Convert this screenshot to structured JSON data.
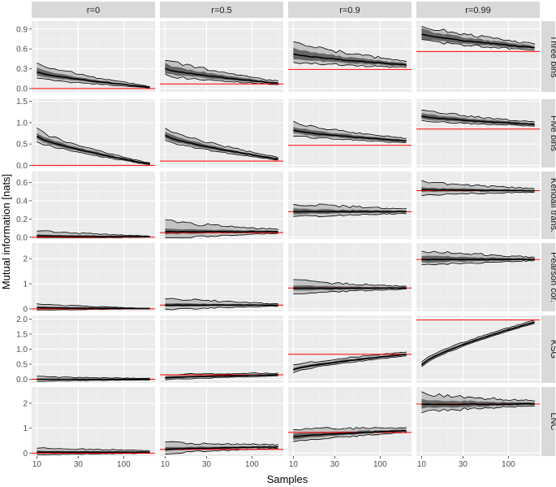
{
  "chart_data": {
    "type": "line",
    "layout": "facet_grid",
    "xlabel": "Samples",
    "ylabel": "Mutual information [nats]",
    "x_scale": "log",
    "x_range": [
      10,
      200
    ],
    "x_ticks": [
      10,
      30,
      100
    ],
    "column_facets": [
      "r=0",
      "r=0.5",
      "r=0.9",
      "r=0.99"
    ],
    "row_facets": [
      {
        "label": "Three bins",
        "ylim": [
          -0.05,
          1.02
        ],
        "yticks": [
          0.0,
          0.3,
          0.6,
          0.9
        ],
        "true_mi": [
          0.0,
          0.07,
          0.29,
          0.56
        ],
        "median_start": [
          0.25,
          0.3,
          0.52,
          0.82
        ],
        "median_end": [
          0.02,
          0.08,
          0.36,
          0.62
        ],
        "band50_start": [
          0.1,
          0.14,
          0.15,
          0.14
        ],
        "band50_end": [
          0.01,
          0.02,
          0.05,
          0.05
        ],
        "band90_start": [
          0.23,
          0.26,
          0.3,
          0.24
        ],
        "band90_end": [
          0.02,
          0.05,
          0.1,
          0.09
        ]
      },
      {
        "label": "Five bins",
        "ylim": [
          -0.05,
          1.55
        ],
        "yticks": [
          0.0,
          0.5,
          1.0,
          1.5
        ],
        "true_mi": [
          0.0,
          0.1,
          0.47,
          0.85
        ],
        "median_start": [
          0.68,
          0.7,
          0.82,
          1.15
        ],
        "median_end": [
          0.03,
          0.15,
          0.57,
          0.96
        ],
        "band50_start": [
          0.14,
          0.15,
          0.15,
          0.14
        ],
        "band50_end": [
          0.02,
          0.03,
          0.05,
          0.05
        ],
        "band90_start": [
          0.28,
          0.3,
          0.3,
          0.25
        ],
        "band90_end": [
          0.04,
          0.06,
          0.1,
          0.09
        ]
      },
      {
        "label": "Kendall trans.",
        "ylim": [
          -0.02,
          0.72
        ],
        "yticks": [
          0.0,
          0.2,
          0.4,
          0.6
        ],
        "true_mi": [
          0.0,
          0.05,
          0.28,
          0.51
        ],
        "median_start": [
          0.015,
          0.06,
          0.28,
          0.52
        ],
        "median_end": [
          0.005,
          0.06,
          0.28,
          0.51
        ],
        "band50_start": [
          0.03,
          0.06,
          0.06,
          0.05
        ],
        "band50_end": [
          0.005,
          0.02,
          0.025,
          0.015
        ],
        "band90_start": [
          0.1,
          0.2,
          0.15,
          0.15
        ],
        "band90_end": [
          0.01,
          0.04,
          0.05,
          0.04
        ]
      },
      {
        "label": "Pearson cor.",
        "ylim": [
          -0.1,
          2.62
        ],
        "yticks": [
          0,
          1,
          2
        ],
        "true_mi": [
          0.0,
          0.15,
          0.83,
          1.97
        ],
        "median_start": [
          0.05,
          0.15,
          0.82,
          1.97
        ],
        "median_end": [
          0.01,
          0.15,
          0.83,
          1.97
        ],
        "band50_start": [
          0.08,
          0.15,
          0.22,
          0.28
        ],
        "band50_end": [
          0.01,
          0.04,
          0.06,
          0.07
        ],
        "band90_start": [
          0.25,
          0.5,
          0.55,
          0.65
        ],
        "band90_end": [
          0.02,
          0.08,
          0.12,
          0.13
        ]
      },
      {
        "label": "KSG",
        "ylim": [
          -0.12,
          2.12
        ],
        "yticks": [
          0.0,
          0.5,
          1.0,
          1.5,
          2.0
        ],
        "true_mi": [
          0.0,
          0.15,
          0.83,
          1.97
        ],
        "median_start": [
          0.0,
          0.05,
          0.32,
          0.48
        ],
        "median_end": [
          0.0,
          0.15,
          0.83,
          1.9
        ],
        "band50_start": [
          0.05,
          0.08,
          0.1,
          0.08
        ],
        "band50_end": [
          0.02,
          0.04,
          0.05,
          0.04
        ],
        "band90_start": [
          0.15,
          0.18,
          0.22,
          0.16
        ],
        "band90_end": [
          0.05,
          0.1,
          0.12,
          0.1
        ]
      },
      {
        "label": "LNC",
        "ylim": [
          -0.12,
          2.65
        ],
        "yticks": [
          0,
          1,
          2
        ],
        "true_mi": [
          0.0,
          0.15,
          0.83,
          1.97
        ],
        "median_start": [
          0.04,
          0.15,
          0.65,
          1.95
        ],
        "median_end": [
          0.04,
          0.25,
          0.9,
          1.97
        ],
        "band50_start": [
          0.1,
          0.15,
          0.22,
          0.35
        ],
        "band50_end": [
          0.04,
          0.06,
          0.08,
          0.1
        ],
        "band90_start": [
          0.3,
          0.45,
          0.55,
          0.75
        ],
        "band90_end": [
          0.1,
          0.15,
          0.18,
          0.2
        ]
      }
    ],
    "colors": {
      "panel_bg": "#ebebeb",
      "grid_major": "#ffffff",
      "strip_bg": "#d9d9d9",
      "band_outer": "#bebebe",
      "band_inner": "#666666",
      "median_line": "#000000",
      "quantile_line": "#000000",
      "true_line": "#ff0000"
    },
    "grid": true
  }
}
